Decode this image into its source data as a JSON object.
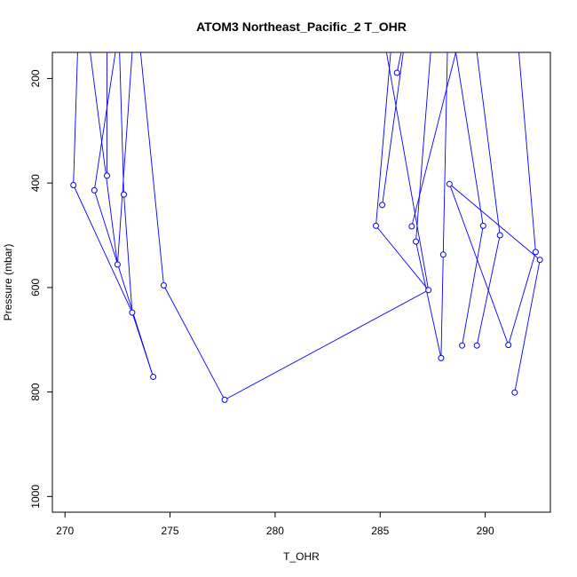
{
  "chart_data": {
    "type": "line",
    "title": "ATOM3 Northeast_Pacific_2 T_OHR",
    "xlabel": "T_OHR",
    "ylabel": "Pressure (mbar)",
    "xlim": [
      269.4,
      293.1
    ],
    "ylim": [
      1030,
      150
    ],
    "y_reversed": true,
    "grid": false,
    "x_ticks": [
      270,
      275,
      280,
      285,
      290
    ],
    "y_ticks": [
      200,
      400,
      600,
      800,
      1000
    ],
    "series_color": "#0000ff",
    "series": [
      {
        "points": [
          [
            270.4,
            404
          ],
          [
            270.6,
            150
          ]
        ]
      },
      {
        "points": [
          [
            270.4,
            404
          ],
          [
            273.2,
            648
          ],
          [
            274.2,
            771
          ]
        ]
      },
      {
        "points": [
          [
            271.4,
            414
          ],
          [
            272.4,
            150
          ]
        ]
      },
      {
        "points": [
          [
            271.4,
            414
          ],
          [
            274.2,
            771
          ]
        ]
      },
      {
        "points": [
          [
            272.0,
            386
          ],
          [
            272.0,
            150
          ]
        ]
      },
      {
        "points": [
          [
            271.2,
            150
          ],
          [
            272.5,
            556
          ]
        ]
      },
      {
        "points": [
          [
            272.5,
            556
          ],
          [
            273.2,
            150
          ]
        ]
      },
      {
        "points": [
          [
            272.8,
            422
          ],
          [
            272.6,
            150
          ]
        ]
      },
      {
        "points": [
          [
            272.8,
            422
          ],
          [
            273.2,
            648
          ]
        ]
      },
      {
        "points": [
          [
            274.7,
            596
          ],
          [
            273.6,
            150
          ]
        ]
      },
      {
        "points": [
          [
            274.7,
            596
          ],
          [
            277.6,
            815
          ],
          [
            287.3,
            605
          ],
          [
            285.3,
            150
          ]
        ]
      },
      {
        "points": [
          [
            284.8,
            482
          ],
          [
            285.5,
            150
          ]
        ]
      },
      {
        "points": [
          [
            284.8,
            482
          ],
          [
            287.3,
            605
          ]
        ]
      },
      {
        "points": [
          [
            285.1,
            442
          ],
          [
            286.1,
            150
          ]
        ]
      },
      {
        "points": [
          [
            285.8,
            189
          ],
          [
            286.0,
            150
          ]
        ]
      },
      {
        "points": [
          [
            286.5,
            483
          ],
          [
            288.6,
            150
          ]
        ]
      },
      {
        "points": [
          [
            286.7,
            512
          ],
          [
            287.9,
            735
          ]
        ]
      },
      {
        "points": [
          [
            286.7,
            512
          ],
          [
            287.4,
            150
          ]
        ]
      },
      {
        "points": [
          [
            287.9,
            735
          ],
          [
            288.0,
            537
          ],
          [
            288.2,
            150
          ]
        ]
      },
      {
        "points": [
          [
            288.9,
            711
          ],
          [
            289.9,
            482
          ],
          [
            288.6,
            150
          ]
        ]
      },
      {
        "points": [
          [
            289.6,
            711
          ],
          [
            290.7,
            500
          ],
          [
            289.6,
            150
          ]
        ]
      },
      {
        "points": [
          [
            288.3,
            402
          ],
          [
            292.6,
            547
          ],
          [
            291.4,
            801
          ]
        ]
      },
      {
        "points": [
          [
            288.3,
            402
          ],
          [
            291.1,
            710
          ],
          [
            292.4,
            532
          ],
          [
            291.6,
            150
          ]
        ]
      }
    ],
    "markers": [
      [
        270.4,
        404
      ],
      [
        271.4,
        414
      ],
      [
        272.0,
        386
      ],
      [
        272.5,
        556
      ],
      [
        272.8,
        422
      ],
      [
        273.2,
        648
      ],
      [
        274.2,
        771
      ],
      [
        274.7,
        596
      ],
      [
        277.6,
        815
      ],
      [
        284.8,
        482
      ],
      [
        285.1,
        442
      ],
      [
        285.8,
        189
      ],
      [
        286.5,
        483
      ],
      [
        286.7,
        512
      ],
      [
        287.3,
        605
      ],
      [
        287.9,
        735
      ],
      [
        288.0,
        537
      ],
      [
        288.3,
        402
      ],
      [
        288.9,
        711
      ],
      [
        289.6,
        711
      ],
      [
        289.9,
        482
      ],
      [
        290.7,
        500
      ],
      [
        291.1,
        710
      ],
      [
        291.4,
        801
      ],
      [
        292.4,
        532
      ],
      [
        292.6,
        547
      ]
    ]
  }
}
